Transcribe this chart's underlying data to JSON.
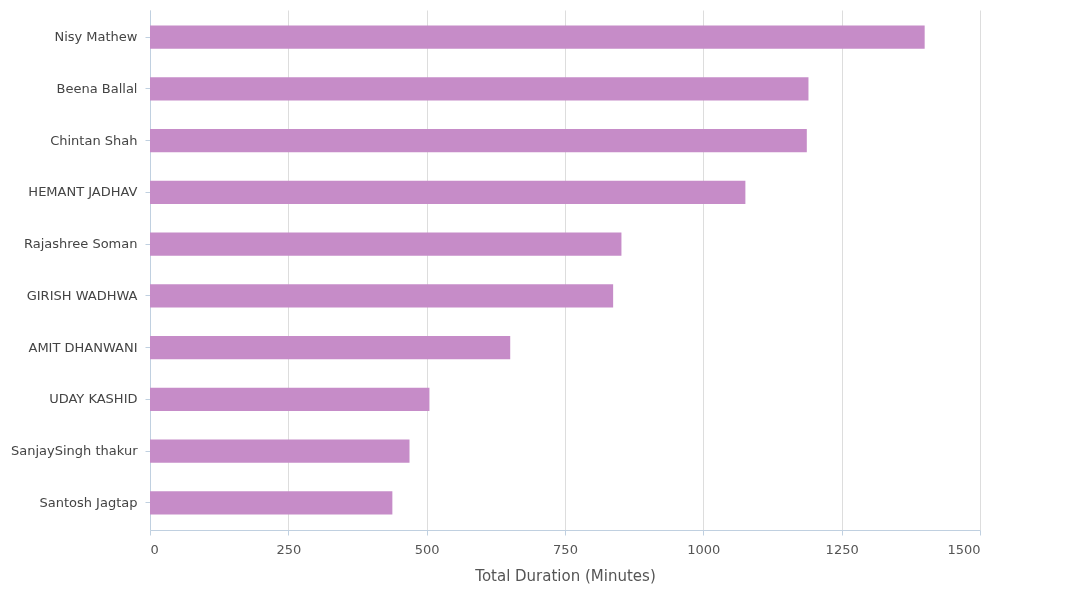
{
  "chart_data": {
    "type": "bar",
    "orientation": "horizontal",
    "xlabel": "Total Duration (Minutes)",
    "categories": [
      "Nisy Mathew",
      "Beena Ballal",
      "Chintan Shah",
      "HEMANT JADHAV",
      "Rajashree Soman",
      "GIRISH WADHWA",
      "AMIT DHANWANI",
      "UDAY KASHID",
      "SanjaySingh thakur",
      "Santosh Jagtap"
    ],
    "values": [
      1400,
      1190,
      1187,
      1076,
      852,
      837,
      651,
      505,
      469,
      438
    ],
    "color": "#c68cc8",
    "xlim": [
      0,
      1500
    ],
    "xticks": [
      0,
      250,
      500,
      750,
      1000,
      1250,
      1500
    ],
    "grid": "x"
  }
}
